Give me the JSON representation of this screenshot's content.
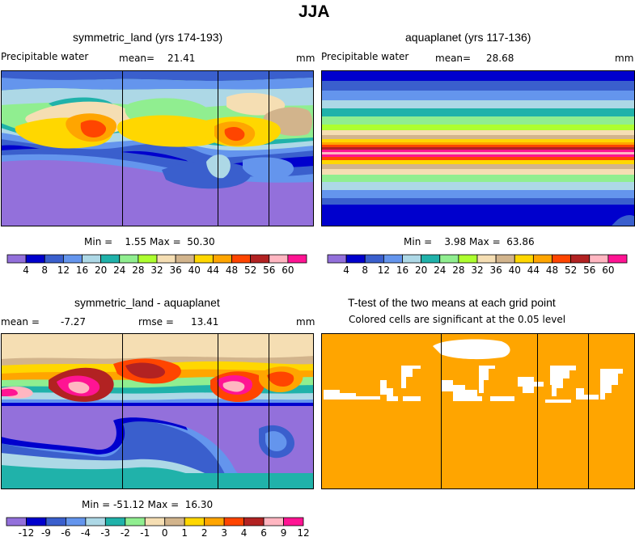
{
  "figure": {
    "title": "JJA"
  },
  "panels": {
    "a": {
      "title": "symmetric_land (yrs 174-193)",
      "left_label": "Precipitable water",
      "mean_label": "mean=",
      "mean_value": "21.41",
      "units": "mm",
      "min_max": "Min =    1.55 Max =  50.30"
    },
    "b": {
      "title": "aquaplanet (yrs 117-136)",
      "left_label": "Precipitable water",
      "mean_label": "mean=",
      "mean_value": "28.68",
      "units": "mm",
      "min_max": "Min =    3.98 Max =  63.86"
    },
    "c": {
      "title": "symmetric_land - aquaplanet",
      "mean_label": "mean =",
      "mean_value": "-7.27",
      "rmse_label": "rmse =",
      "rmse_value": "13.41",
      "units": "mm",
      "min_max": "Min = -51.12 Max =  16.30"
    },
    "d": {
      "title": "T-test of the two means at each grid point",
      "subtitle": "Colored cells are significant at the 0.05 level"
    }
  },
  "colorbars": {
    "field": {
      "colors": [
        "#9370db",
        "#0000cd",
        "#3a5fcd",
        "#6495ed",
        "#add8e6",
        "#20b2aa",
        "#90ee90",
        "#adff2f",
        "#f5deb3",
        "#d2b48c",
        "#ffd700",
        "#ffa500",
        "#ff4500",
        "#b22222",
        "#ffb6c1",
        "#ff1493"
      ],
      "labels": [
        "4",
        "8",
        "12",
        "16",
        "20",
        "24",
        "28",
        "32",
        "36",
        "40",
        "44",
        "48",
        "52",
        "56",
        "60"
      ]
    },
    "diff": {
      "colors": [
        "#9370db",
        "#0000cd",
        "#3a5fcd",
        "#6495ed",
        "#add8e6",
        "#20b2aa",
        "#90ee90",
        "#f5deb3",
        "#d2b48c",
        "#ffd700",
        "#ffa500",
        "#ff4500",
        "#b22222",
        "#ffb6c1",
        "#ff1493"
      ],
      "labels": [
        "-12",
        "-9",
        "-6",
        "-4",
        "-3",
        "-2",
        "-1",
        "0",
        "1",
        "2",
        "3",
        "4",
        "6",
        "9",
        "12"
      ]
    }
  },
  "colors": {
    "significant": "#ffa500",
    "not_significant": "#ffffff"
  },
  "chart_data": [
    {
      "type": "heatmap",
      "title": "symmetric_land (yrs 174-193)",
      "variable": "Precipitable water",
      "units": "mm",
      "mean": 21.41,
      "min": 1.55,
      "max": 50.3,
      "levels": [
        4,
        8,
        12,
        16,
        20,
        24,
        28,
        32,
        36,
        40,
        44,
        48,
        52,
        56,
        60
      ]
    },
    {
      "type": "heatmap",
      "title": "aquaplanet (yrs 117-136)",
      "variable": "Precipitable water",
      "units": "mm",
      "mean": 28.68,
      "min": 3.98,
      "max": 63.86,
      "levels": [
        4,
        8,
        12,
        16,
        20,
        24,
        28,
        32,
        36,
        40,
        44,
        48,
        52,
        56,
        60
      ]
    },
    {
      "type": "heatmap",
      "title": "symmetric_land - aquaplanet",
      "units": "mm",
      "mean": -7.27,
      "rmse": 13.41,
      "min": -51.12,
      "max": 16.3,
      "levels": [
        -12,
        -9,
        -6,
        -4,
        -3,
        -2,
        -1,
        0,
        1,
        2,
        3,
        4,
        6,
        9,
        12
      ]
    },
    {
      "type": "heatmap",
      "title": "T-test of the two means at each grid point",
      "subtitle": "Colored cells are significant at the 0.05 level"
    }
  ]
}
